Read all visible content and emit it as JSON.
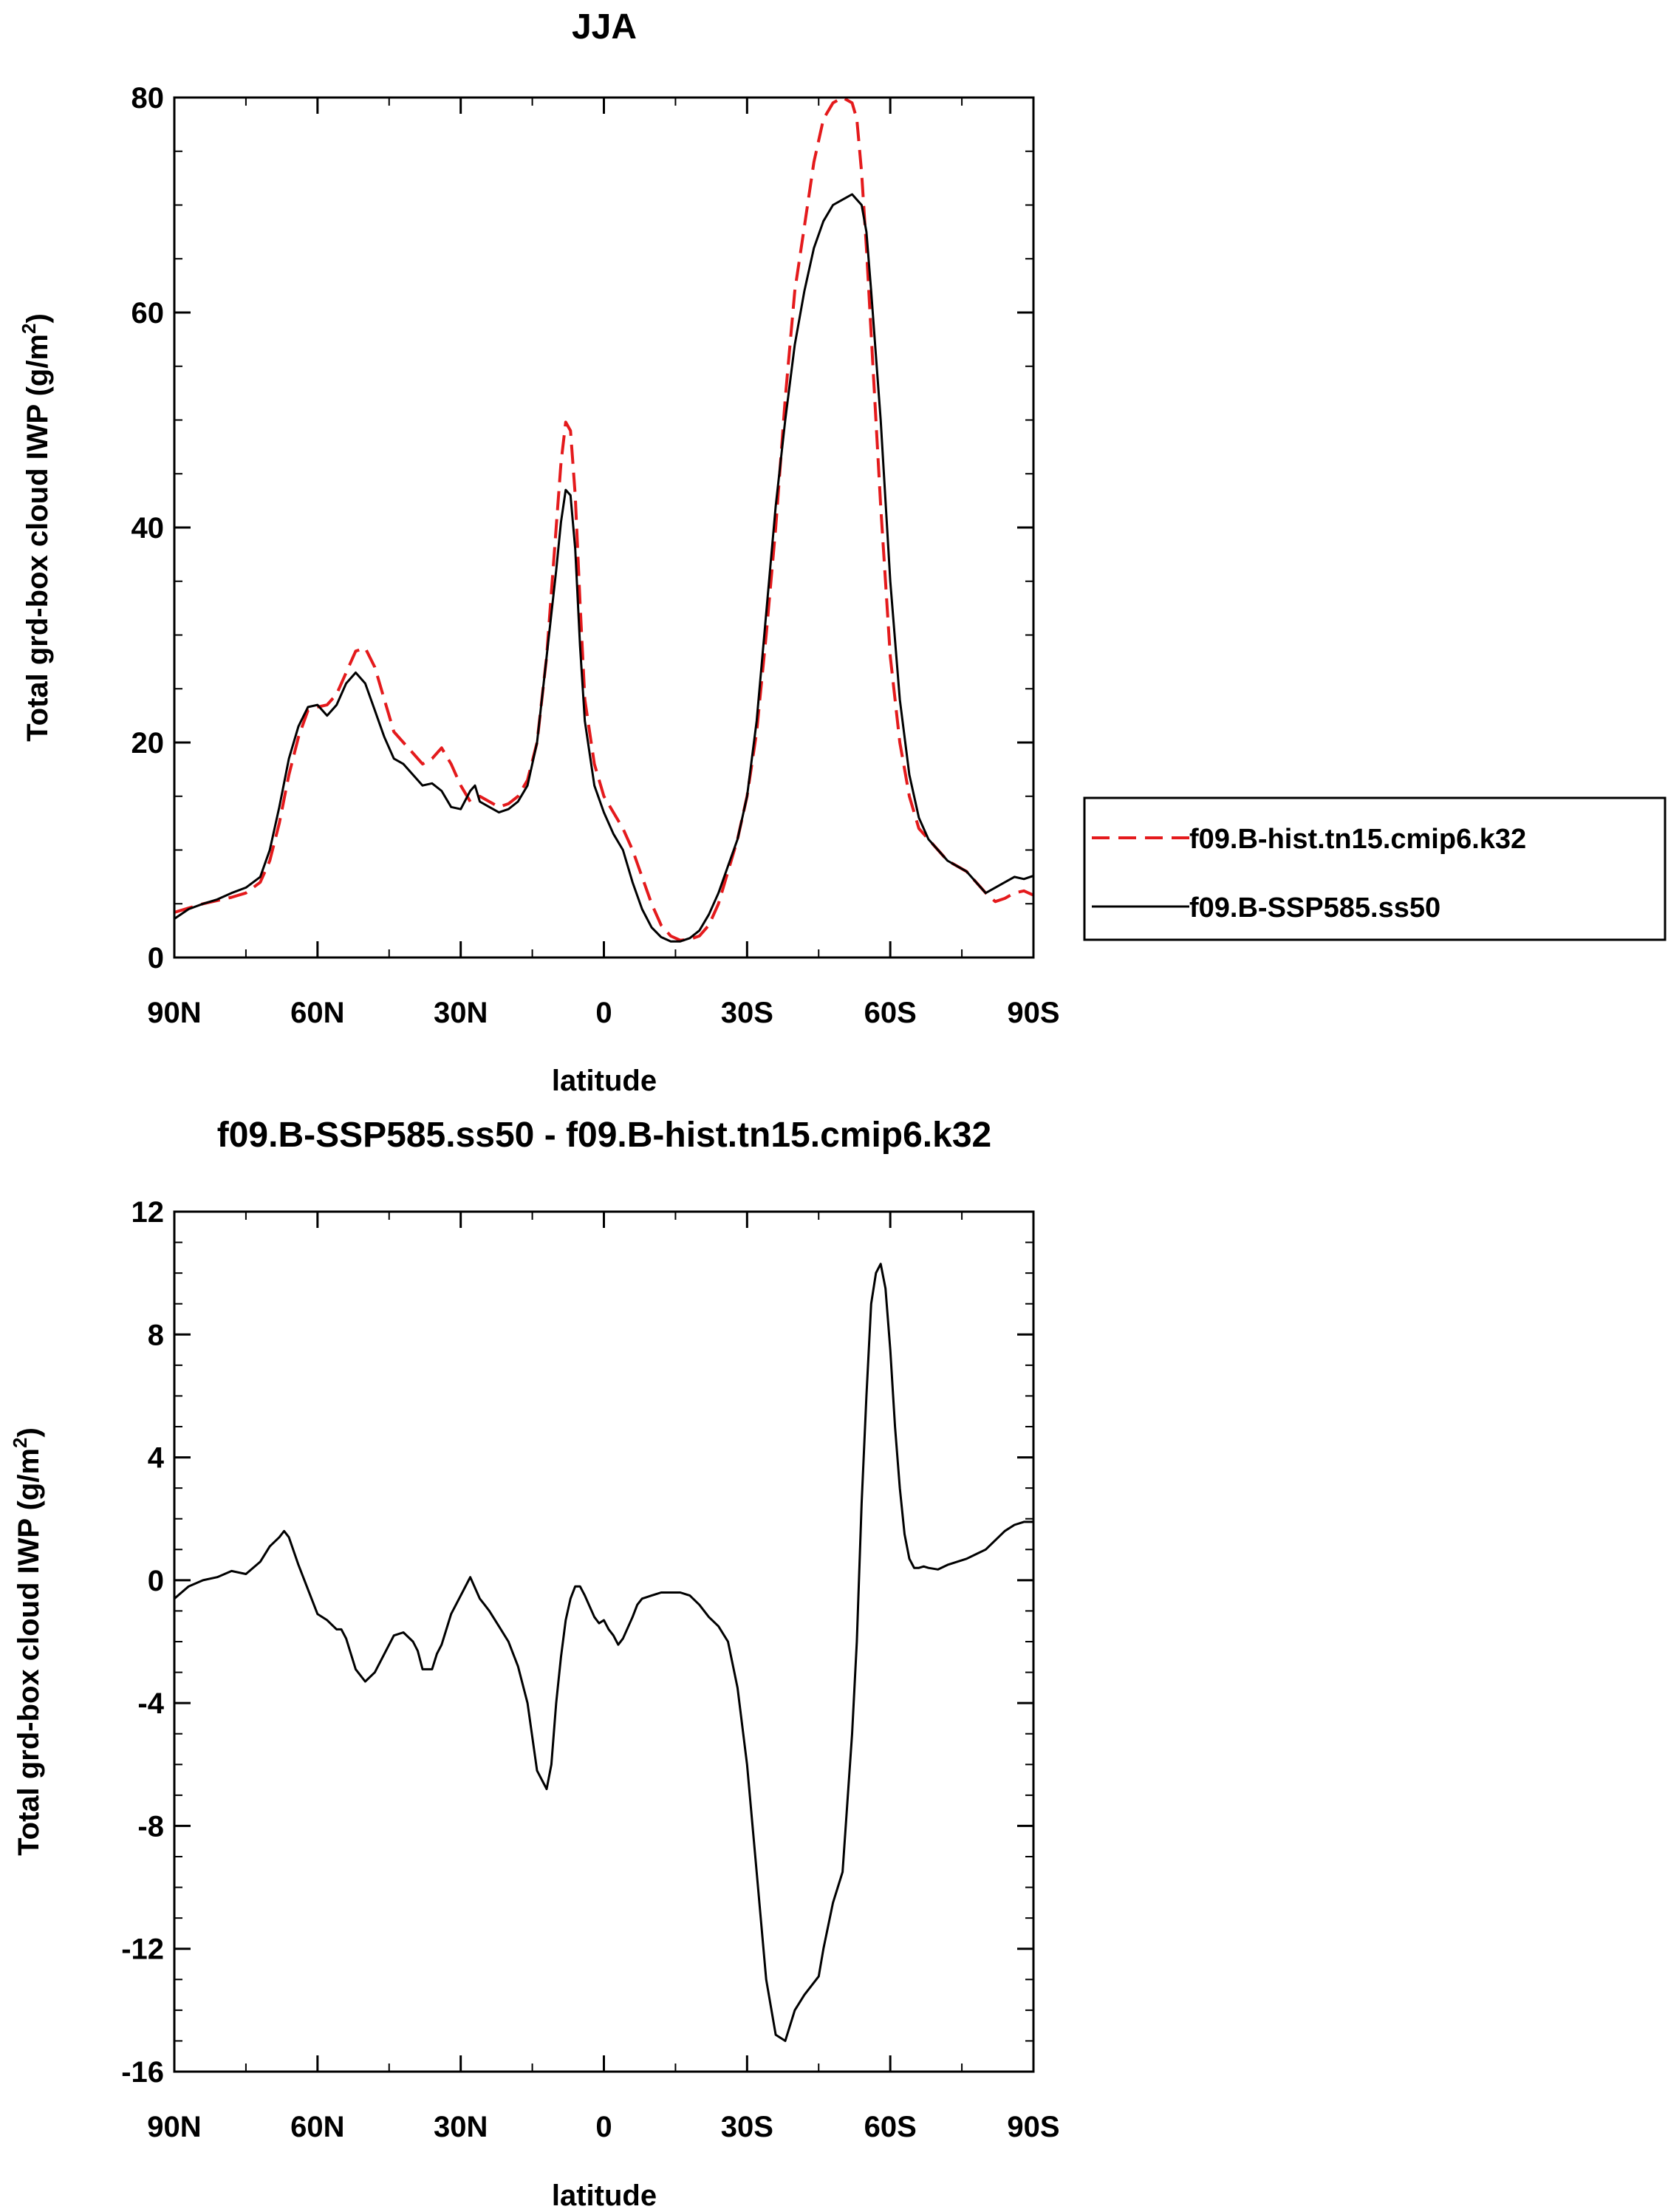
{
  "chart_data": [
    {
      "type": "line",
      "title": "JJA",
      "xlabel": "latitude",
      "ylabel": "Total grd-box cloud IWP (g/m",
      "ylabel_sup": "2",
      "ylabel_close": ")",
      "xlim": [
        90,
        -90
      ],
      "ylim": [
        0,
        80
      ],
      "xticks": [
        90,
        60,
        30,
        0,
        -30,
        -60,
        -90
      ],
      "xtick_labels": [
        "90N",
        "60N",
        "30N",
        "0",
        "30S",
        "60S",
        "90S"
      ],
      "yticks": [
        0,
        20,
        40,
        60,
        80
      ],
      "ytick_labels": [
        "0",
        "20",
        "40",
        "60",
        "80"
      ],
      "legend": {
        "placement": "right",
        "entries": [
          "f09.B-hist.tn15.cmip6.k32",
          "f09.B-SSP585.ss50"
        ]
      },
      "series": [
        {
          "name": "f09.B-hist.tn15.cmip6.k32",
          "color": "#e41a1c",
          "dash": "dashed",
          "x": [
            90,
            87,
            84,
            81,
            78,
            75,
            72,
            70,
            68,
            66,
            64,
            62,
            60,
            58,
            56,
            54,
            52,
            50,
            48,
            46,
            44,
            42,
            40,
            38,
            36,
            34,
            32,
            30,
            28,
            26,
            24,
            22,
            20,
            18,
            16,
            14,
            12,
            10,
            9,
            8,
            7,
            6,
            5,
            4,
            2,
            0,
            -2,
            -4,
            -6,
            -8,
            -10,
            -12,
            -14,
            -16,
            -18,
            -20,
            -22,
            -24,
            -26,
            -28,
            -30,
            -32,
            -34,
            -36,
            -38,
            -40,
            -42,
            -44,
            -46,
            -48,
            -50,
            -52,
            -53,
            -54,
            -55,
            -56,
            -58,
            -60,
            -62,
            -64,
            -66,
            -68,
            -70,
            -72,
            -74,
            -76,
            -78,
            -80,
            -82,
            -84,
            -86,
            -88,
            -90
          ],
          "values": [
            4.2,
            4.6,
            5.0,
            5.3,
            5.6,
            6.0,
            7.0,
            9.0,
            12.5,
            17.0,
            20.5,
            23.0,
            23.3,
            23.5,
            24.5,
            26.5,
            28.5,
            28.8,
            27.0,
            24.0,
            21.0,
            20.0,
            19.0,
            18.0,
            18.5,
            19.5,
            18.0,
            16.0,
            14.5,
            15.0,
            14.5,
            14.0,
            14.3,
            15.0,
            16.5,
            20.0,
            28.0,
            40.0,
            46.0,
            49.8,
            49.0,
            43.0,
            33.0,
            24.0,
            18.0,
            15.0,
            13.5,
            12.0,
            10.0,
            7.5,
            5.0,
            3.0,
            2.0,
            1.6,
            1.7,
            2.0,
            3.0,
            5.0,
            8.0,
            11.0,
            15.0,
            21.0,
            30.0,
            40.0,
            52.0,
            62.0,
            68.0,
            74.0,
            78.0,
            79.5,
            80.0,
            79.5,
            78.0,
            73.0,
            66.0,
            58.0,
            42.0,
            28.0,
            20.0,
            15.0,
            12.0,
            11.0,
            10.0,
            9.0,
            8.5,
            8.0,
            7.0,
            6.0,
            5.2,
            5.5,
            6.0,
            6.2,
            5.8
          ],
          "ytrace": "dashed-red"
        },
        {
          "name": "f09.B-SSP585.ss50",
          "color": "#000000",
          "dash": "solid",
          "x": [
            90,
            87,
            84,
            81,
            78,
            75,
            72,
            70,
            68,
            66,
            64,
            62,
            60,
            58,
            56,
            54,
            52,
            50,
            48,
            46,
            44,
            42,
            40,
            38,
            36,
            34,
            32,
            30,
            28,
            27,
            26,
            24,
            22,
            20,
            18,
            16,
            14,
            12,
            10,
            9,
            8,
            7,
            6,
            5,
            4,
            2,
            0,
            -2,
            -4,
            -6,
            -8,
            -10,
            -12,
            -14,
            -16,
            -18,
            -20,
            -22,
            -24,
            -26,
            -28,
            -30,
            -32,
            -34,
            -36,
            -38,
            -40,
            -42,
            -44,
            -46,
            -48,
            -50,
            -52,
            -54,
            -55,
            -56,
            -58,
            -60,
            -62,
            -64,
            -66,
            -68,
            -70,
            -72,
            -74,
            -76,
            -78,
            -80,
            -82,
            -84,
            -86,
            -88,
            -90
          ],
          "values": [
            3.6,
            4.5,
            5.0,
            5.4,
            6.0,
            6.5,
            7.5,
            10.0,
            14.0,
            18.5,
            21.5,
            23.3,
            23.5,
            22.5,
            23.5,
            25.5,
            26.5,
            25.5,
            23.0,
            20.5,
            18.5,
            18.0,
            17.0,
            16.0,
            16.2,
            15.5,
            14.0,
            13.8,
            15.5,
            16.0,
            14.5,
            14.0,
            13.5,
            13.8,
            14.5,
            16.0,
            20.0,
            28.0,
            36.0,
            40.5,
            43.5,
            43.0,
            38.0,
            29.0,
            22.0,
            16.0,
            13.5,
            11.5,
            10.0,
            7.0,
            4.5,
            2.8,
            1.9,
            1.5,
            1.5,
            1.8,
            2.5,
            4.0,
            6.0,
            8.5,
            11.0,
            15.0,
            22.0,
            32.0,
            42.0,
            50.0,
            57.0,
            62.0,
            66.0,
            68.5,
            70.0,
            70.5,
            71.0,
            70.0,
            67.5,
            62.0,
            50.0,
            35.0,
            24.0,
            17.0,
            13.0,
            11.0,
            10.0,
            9.0,
            8.5,
            8.0,
            7.0,
            6.0,
            6.5,
            7.0,
            7.5,
            7.3,
            7.6
          ]
        }
      ]
    },
    {
      "type": "line",
      "title": "f09.B-SSP585.ss50 - f09.B-hist.tn15.cmip6.k32",
      "xlabel": "latitude",
      "ylabel": "Total grd-box cloud IWP (g/m",
      "ylabel_sup": "2",
      "ylabel_close": ")",
      "xlim": [
        90,
        -90
      ],
      "ylim": [
        -16,
        12
      ],
      "xticks": [
        90,
        60,
        30,
        0,
        -30,
        -60,
        -90
      ],
      "xtick_labels": [
        "90N",
        "60N",
        "30N",
        "0",
        "30S",
        "60S",
        "90S"
      ],
      "yticks": [
        -16,
        -12,
        -8,
        -4,
        0,
        4,
        8,
        12
      ],
      "ytick_labels": [
        "-16",
        "-12",
        "-8",
        "-4",
        "0",
        "4",
        "8",
        "12"
      ],
      "series": [
        {
          "name": "f09.B-SSP585.ss50 - f09.B-hist.tn15.cmip6.k32",
          "color": "#000000",
          "dash": "solid",
          "x": [
            90,
            87,
            84,
            81,
            78,
            75,
            72,
            70,
            68,
            67,
            66,
            64,
            62,
            60,
            58,
            56,
            55,
            54,
            52,
            50,
            48,
            46,
            44,
            42,
            40,
            39,
            38,
            36,
            35,
            34,
            32,
            30,
            28,
            26,
            25,
            24,
            22,
            20,
            18,
            16,
            14,
            12,
            11,
            10,
            9,
            8,
            7,
            6,
            5,
            4,
            2,
            1,
            0,
            -1,
            -2,
            -3,
            -4,
            -6,
            -7,
            -8,
            -10,
            -12,
            -14,
            -16,
            -18,
            -20,
            -22,
            -24,
            -26,
            -28,
            -30,
            -32,
            -34,
            -36,
            -38,
            -40,
            -42,
            -43,
            -44,
            -45,
            -46,
            -48,
            -50,
            -52,
            -53,
            -54,
            -55,
            -56,
            -57,
            -58,
            -59,
            -60,
            -61,
            -62,
            -63,
            -64,
            -65,
            -66,
            -67,
            -68,
            -70,
            -72,
            -74,
            -76,
            -78,
            -80,
            -82,
            -84,
            -86,
            -88,
            -89,
            -90
          ],
          "values": [
            -0.6,
            -0.2,
            0.0,
            0.1,
            0.3,
            0.2,
            0.6,
            1.1,
            1.4,
            1.6,
            1.4,
            0.5,
            -0.3,
            -1.1,
            -1.3,
            -1.6,
            -1.6,
            -1.9,
            -2.9,
            -3.3,
            -3.0,
            -2.4,
            -1.8,
            -1.7,
            -2.0,
            -2.3,
            -2.9,
            -2.9,
            -2.4,
            -2.1,
            -1.1,
            -0.5,
            0.1,
            -0.6,
            -0.8,
            -1.0,
            -1.5,
            -2.0,
            -2.8,
            -4.0,
            -6.2,
            -6.8,
            -6.0,
            -4.0,
            -2.5,
            -1.3,
            -0.6,
            -0.2,
            -0.2,
            -0.5,
            -1.2,
            -1.4,
            -1.3,
            -1.6,
            -1.8,
            -2.1,
            -1.9,
            -1.2,
            -0.8,
            -0.6,
            -0.5,
            -0.4,
            -0.4,
            -0.4,
            -0.5,
            -0.8,
            -1.2,
            -1.5,
            -2.0,
            -3.5,
            -6.0,
            -9.5,
            -13.0,
            -14.8,
            -15.0,
            -14.0,
            -13.5,
            -13.3,
            -13.1,
            -12.9,
            -12.0,
            -10.5,
            -9.5,
            -5.0,
            -2.0,
            2.5,
            6.0,
            9.0,
            10.0,
            10.3,
            9.5,
            7.5,
            5.0,
            3.0,
            1.5,
            0.7,
            0.4,
            0.4,
            0.45,
            0.4,
            0.35,
            0.5,
            0.6,
            0.7,
            0.85,
            1.0,
            1.3,
            1.6,
            1.8,
            1.9,
            1.9,
            1.9
          ]
        }
      ]
    }
  ]
}
